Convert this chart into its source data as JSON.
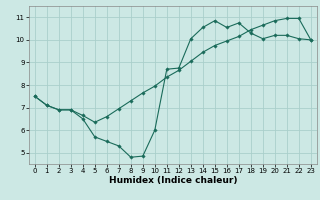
{
  "xlabel": "Humidex (Indice chaleur)",
  "bg_color": "#cce8e4",
  "grid_color": "#aacfcb",
  "line_color": "#1a6b5a",
  "xlim": [
    -0.5,
    23.5
  ],
  "ylim": [
    4.5,
    11.5
  ],
  "xticks": [
    0,
    1,
    2,
    3,
    4,
    5,
    6,
    7,
    8,
    9,
    10,
    11,
    12,
    13,
    14,
    15,
    16,
    17,
    18,
    19,
    20,
    21,
    22,
    23
  ],
  "yticks": [
    5,
    6,
    7,
    8,
    9,
    10,
    11
  ],
  "line1_x": [
    0,
    1,
    2,
    3,
    4,
    5,
    6,
    7,
    8,
    9,
    10,
    11,
    12,
    13,
    14,
    15,
    16,
    17,
    18,
    19,
    20,
    21,
    22,
    23
  ],
  "line1_y": [
    7.5,
    7.1,
    6.9,
    6.9,
    6.5,
    5.7,
    5.5,
    5.3,
    4.8,
    4.85,
    6.0,
    8.7,
    8.75,
    10.05,
    10.55,
    10.85,
    10.55,
    10.75,
    10.3,
    10.05,
    10.2,
    10.2,
    10.05,
    10.0
  ],
  "line2_x": [
    0,
    1,
    2,
    3,
    4,
    5,
    6,
    7,
    8,
    9,
    10,
    11,
    12,
    13,
    14,
    15,
    16,
    17,
    18,
    19,
    20,
    21,
    22,
    23
  ],
  "line2_y": [
    7.5,
    7.1,
    6.9,
    6.9,
    6.65,
    6.35,
    6.6,
    6.95,
    7.3,
    7.65,
    7.95,
    8.35,
    8.65,
    9.05,
    9.45,
    9.75,
    9.95,
    10.15,
    10.45,
    10.65,
    10.85,
    10.95,
    10.95,
    10.0
  ]
}
